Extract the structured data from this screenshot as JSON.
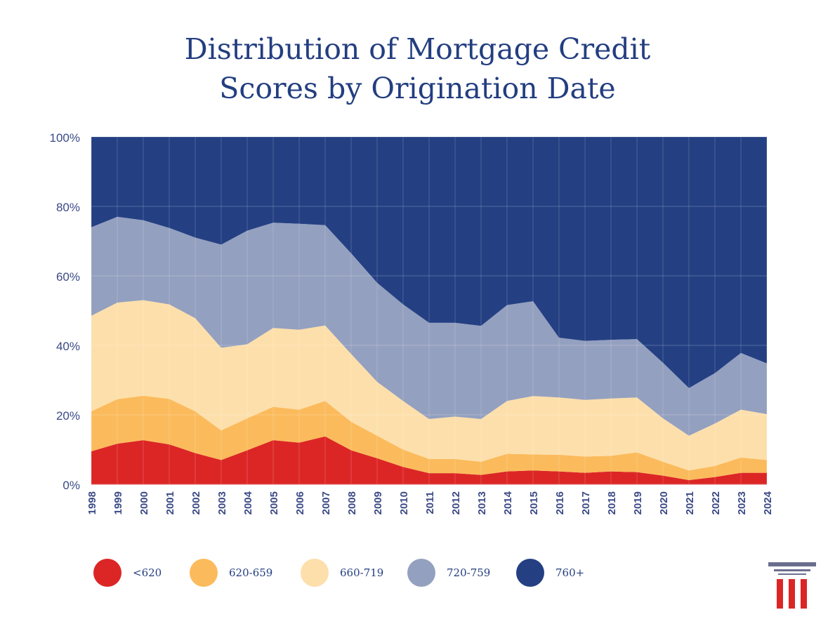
{
  "chart_data": {
    "type": "area",
    "stacked": true,
    "title": "Distribution of Mortgage Credit Scores by Origination Date",
    "title_lines": [
      "Distribution of Mortgage Credit",
      "Scores by Origination Date"
    ],
    "xlabel": "",
    "ylabel": "",
    "ylim": [
      0,
      100
    ],
    "y_ticks": [
      "0%",
      "20%",
      "40%",
      "60%",
      "80%",
      "100%"
    ],
    "grid": true,
    "legend_position": "bottom",
    "categories": [
      "1998",
      "1999",
      "2000",
      "2001",
      "2002",
      "2003",
      "2004",
      "2005",
      "2006",
      "2007",
      "2008",
      "2009",
      "2010",
      "2011",
      "2012",
      "2013",
      "2014",
      "2015",
      "2016",
      "2017",
      "2018",
      "2019",
      "2020",
      "2021",
      "2022",
      "2023",
      "2024"
    ],
    "series": [
      {
        "name": "<620",
        "color": "#dc2626",
        "values": [
          9.5,
          11.7,
          12.7,
          11.5,
          9.0,
          7.0,
          9.8,
          12.7,
          12.0,
          13.8,
          9.8,
          7.5,
          5.0,
          3.2,
          3.2,
          2.7,
          3.7,
          4.0,
          3.7,
          3.3,
          3.7,
          3.5,
          2.5,
          1.2,
          2.1,
          3.3,
          3.3
        ]
      },
      {
        "name": "620-659",
        "color": "#fbbb5c",
        "values": [
          11.5,
          12.8,
          12.8,
          13.1,
          12.0,
          8.5,
          9.2,
          9.6,
          9.5,
          10.2,
          8.2,
          6.5,
          5.0,
          4.1,
          4.1,
          3.8,
          5.1,
          4.6,
          4.8,
          4.7,
          4.5,
          5.7,
          4.0,
          2.8,
          3.2,
          4.4,
          3.7
        ]
      },
      {
        "name": "660-719",
        "color": "#fddfab",
        "values": [
          27.5,
          27.8,
          27.5,
          27.2,
          26.8,
          23.8,
          21.3,
          22.7,
          23.0,
          21.7,
          19.5,
          15.5,
          14.0,
          11.5,
          12.2,
          12.3,
          15.2,
          16.8,
          16.5,
          16.3,
          16.5,
          15.8,
          12.5,
          10.0,
          12.2,
          13.8,
          13.2
        ]
      },
      {
        "name": "720-759",
        "color": "#94a0bf",
        "values": [
          25.5,
          24.7,
          23.0,
          22.0,
          23.2,
          29.7,
          32.7,
          30.3,
          30.5,
          28.9,
          29.0,
          28.5,
          27.8,
          27.7,
          27.0,
          26.8,
          27.6,
          27.3,
          17.2,
          17.0,
          16.9,
          16.8,
          16.0,
          13.7,
          14.5,
          16.3,
          14.6
        ]
      },
      {
        "name": "760+",
        "color": "#244083",
        "values": [
          26.0,
          23.0,
          24.0,
          26.2,
          29.0,
          31.0,
          27.0,
          24.7,
          25.0,
          25.4,
          33.5,
          42.0,
          48.2,
          53.5,
          53.5,
          54.4,
          48.4,
          47.3,
          57.8,
          58.7,
          58.4,
          58.2,
          65.0,
          72.3,
          68.0,
          62.2,
          65.2
        ]
      }
    ]
  },
  "colors": {
    "title": "#233e80",
    "axis_text": "#3b4a86",
    "logo": "#6b6f8e",
    "logo_red": "#dc2626"
  }
}
